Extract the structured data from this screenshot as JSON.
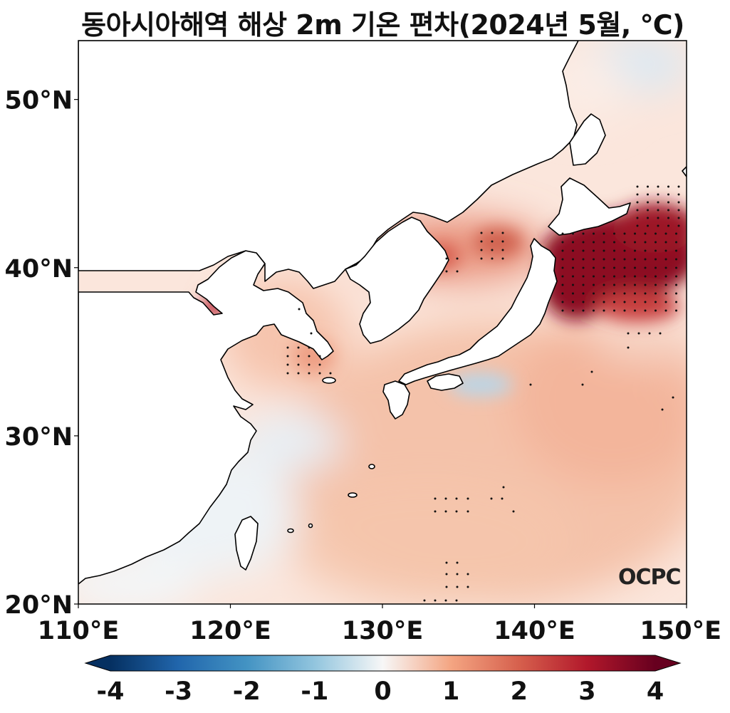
{
  "title": "동아시아해역 해상 2m 기온 편차(2024년 5월, ℃)",
  "map": {
    "lon_range": [
      110,
      150
    ],
    "lat_range": [
      20,
      53.5
    ],
    "x_ticks": [
      {
        "value": 110,
        "label": "110°E"
      },
      {
        "value": 120,
        "label": "120°E"
      },
      {
        "value": 130,
        "label": "130°E"
      },
      {
        "value": 140,
        "label": "140°E"
      },
      {
        "value": 150,
        "label": "150°E"
      }
    ],
    "y_ticks": [
      {
        "value": 20,
        "label": "20°N"
      },
      {
        "value": 30,
        "label": "30°N"
      },
      {
        "value": 40,
        "label": "40°N"
      },
      {
        "value": 50,
        "label": "50°N"
      }
    ],
    "stippling": "statistically significant anomaly regions",
    "logo": "OCPC"
  },
  "colorbar": {
    "colormap": "RdBu_r",
    "range": [
      -4,
      4
    ],
    "extend": "both",
    "ticks": [
      {
        "value": -4,
        "label": "-4"
      },
      {
        "value": -3,
        "label": "-3"
      },
      {
        "value": -2,
        "label": "-2"
      },
      {
        "value": -1,
        "label": "-1"
      },
      {
        "value": 0,
        "label": "0"
      },
      {
        "value": 1,
        "label": "1"
      },
      {
        "value": 2,
        "label": "2"
      },
      {
        "value": 3,
        "label": "3"
      },
      {
        "value": 4,
        "label": "4"
      }
    ]
  },
  "colors": {
    "land": "#ffffff",
    "coastline": "#000000",
    "warm_extreme": "#7a0b1e",
    "cold_extreme": "#0a3a6b"
  }
}
